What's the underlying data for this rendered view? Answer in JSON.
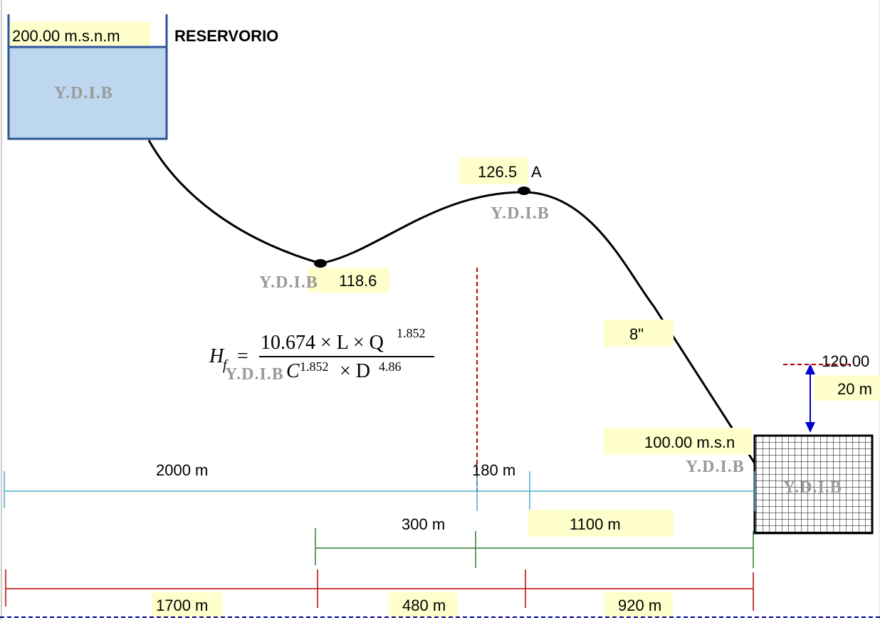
{
  "reservoir": {
    "elevation": "200.00 m.s.n.m",
    "name": "RESERVORIO"
  },
  "points": {
    "low": "118.6",
    "peak": "126.5",
    "peak_name": "A"
  },
  "pipe": {
    "diameter": "8\""
  },
  "tank": {
    "top_level": "120.00",
    "head_diff": "20 m",
    "base_elevation": "100.00 m.s.n"
  },
  "formula": {
    "lhs_H": "H",
    "lhs_sub": "f",
    "equals": "=",
    "num_main": "10.674 × L × Q",
    "num_exp": "1.852",
    "den_C": "C",
    "den_C_exp": "1.852",
    "den_mid": " × D",
    "den_D_exp": "4.86"
  },
  "dimensions": {
    "row1": [
      "2000 m",
      "180 m"
    ],
    "row2": [
      "300 m",
      "1100 m"
    ],
    "row3": [
      "1700 m",
      "480 m",
      "920 m"
    ]
  },
  "watermark": "Y.D.I.B",
  "colors": {
    "reservoir_fill": "#bdd7ee",
    "reservoir_border": "#2f5597",
    "highlight": "#ffffcc",
    "row1_line": "#4bacc6",
    "row2_line": "#2e7d32",
    "row3_line": "#c00000",
    "arrow": "#0000cc",
    "dashed_red": "#c00000",
    "bottom_dash": "#000099"
  }
}
